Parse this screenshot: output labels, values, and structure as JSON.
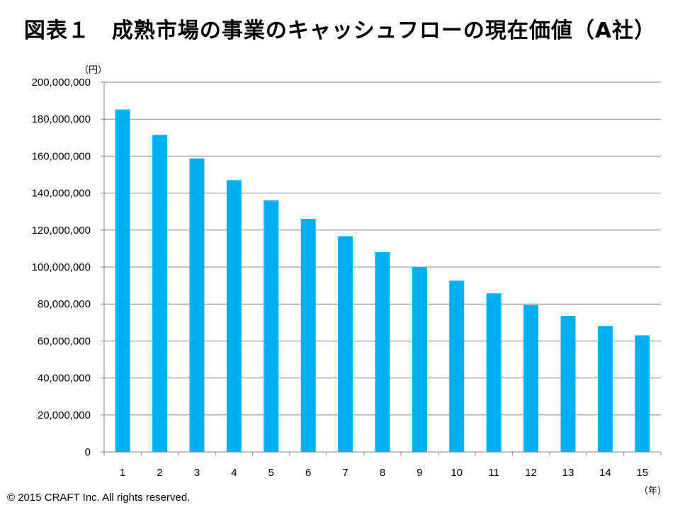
{
  "chart_data": {
    "type": "bar",
    "title": "図表１　成熟市場の事業のキャッシュフローの現在価値（A社）",
    "y_unit": "（円）",
    "x_unit": "（年）",
    "categories": [
      "1",
      "2",
      "3",
      "4",
      "5",
      "6",
      "7",
      "8",
      "9",
      "10",
      "11",
      "12",
      "13",
      "14",
      "15"
    ],
    "values": [
      185185185,
      171467764,
      158766448,
      147005970,
      136116639,
      126033925,
      116698079,
      108053777,
      100049794,
      92638698,
      85776572,
      79422752,
      73539585,
      68092208,
      63048341
    ],
    "ylim": [
      0,
      200000000
    ],
    "y_ticks": [
      "0",
      "20,000,000",
      "40,000,000",
      "60,000,000",
      "80,000,000",
      "100,000,000",
      "120,000,000",
      "140,000,000",
      "160,000,000",
      "180,000,000",
      "200,000,000"
    ],
    "grid": true,
    "bar_color": "#00B0F0",
    "grid_color": "#868686"
  },
  "footer": {
    "copyright": "© 2015 CRAFT Inc. All rights reserved."
  }
}
